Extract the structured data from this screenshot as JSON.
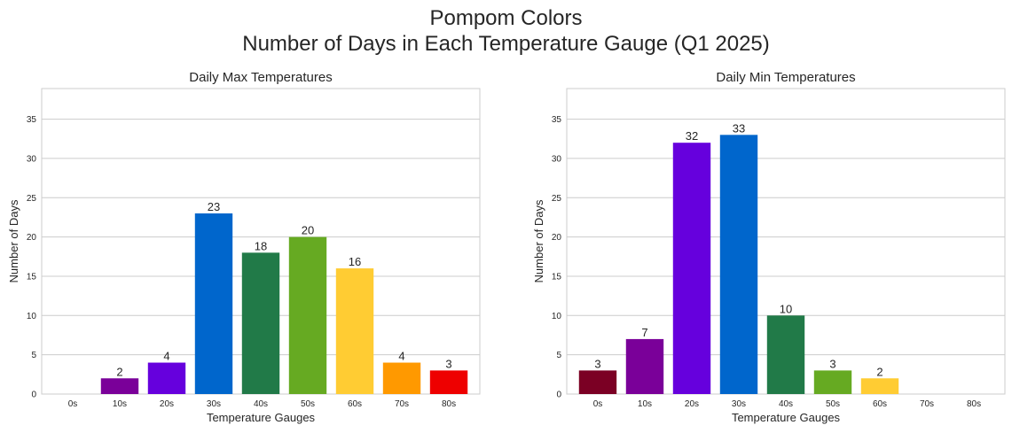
{
  "figure": {
    "title_line1": "Pompom Colors",
    "title_line2": "Number of Days in Each Temperature Gauge (Q1 2025)"
  },
  "chart_data": [
    {
      "type": "bar",
      "title": "Daily Max Temperatures",
      "xlabel": "Temperature Gauges",
      "ylabel": "Number of Days",
      "categories": [
        "0s",
        "10s",
        "20s",
        "30s",
        "40s",
        "50s",
        "60s",
        "70s",
        "80s"
      ],
      "values": [
        0,
        2,
        4,
        23,
        18,
        20,
        16,
        4,
        3
      ],
      "colors": [
        "#7b0024",
        "#7a0099",
        "#6600dd",
        "#0066cc",
        "#217a48",
        "#66aa22",
        "#ffcc33",
        "#ff9900",
        "#ee0000"
      ],
      "ylim": [
        0,
        38.9
      ],
      "yticks": [
        0,
        5,
        10,
        15,
        20,
        25,
        30,
        35
      ],
      "grid": true
    },
    {
      "type": "bar",
      "title": "Daily Min Temperatures",
      "xlabel": "Temperature Gauges",
      "ylabel": "Number of Days",
      "categories": [
        "0s",
        "10s",
        "20s",
        "30s",
        "40s",
        "50s",
        "60s",
        "70s",
        "80s"
      ],
      "values": [
        3,
        7,
        32,
        33,
        10,
        3,
        2,
        0,
        0
      ],
      "colors": [
        "#7b0024",
        "#7a0099",
        "#6600dd",
        "#0066cc",
        "#217a48",
        "#66aa22",
        "#ffcc33",
        "#ff9900",
        "#ee0000"
      ],
      "ylim": [
        0,
        38.9
      ],
      "yticks": [
        0,
        5,
        10,
        15,
        20,
        25,
        30,
        35
      ],
      "grid": true
    }
  ]
}
